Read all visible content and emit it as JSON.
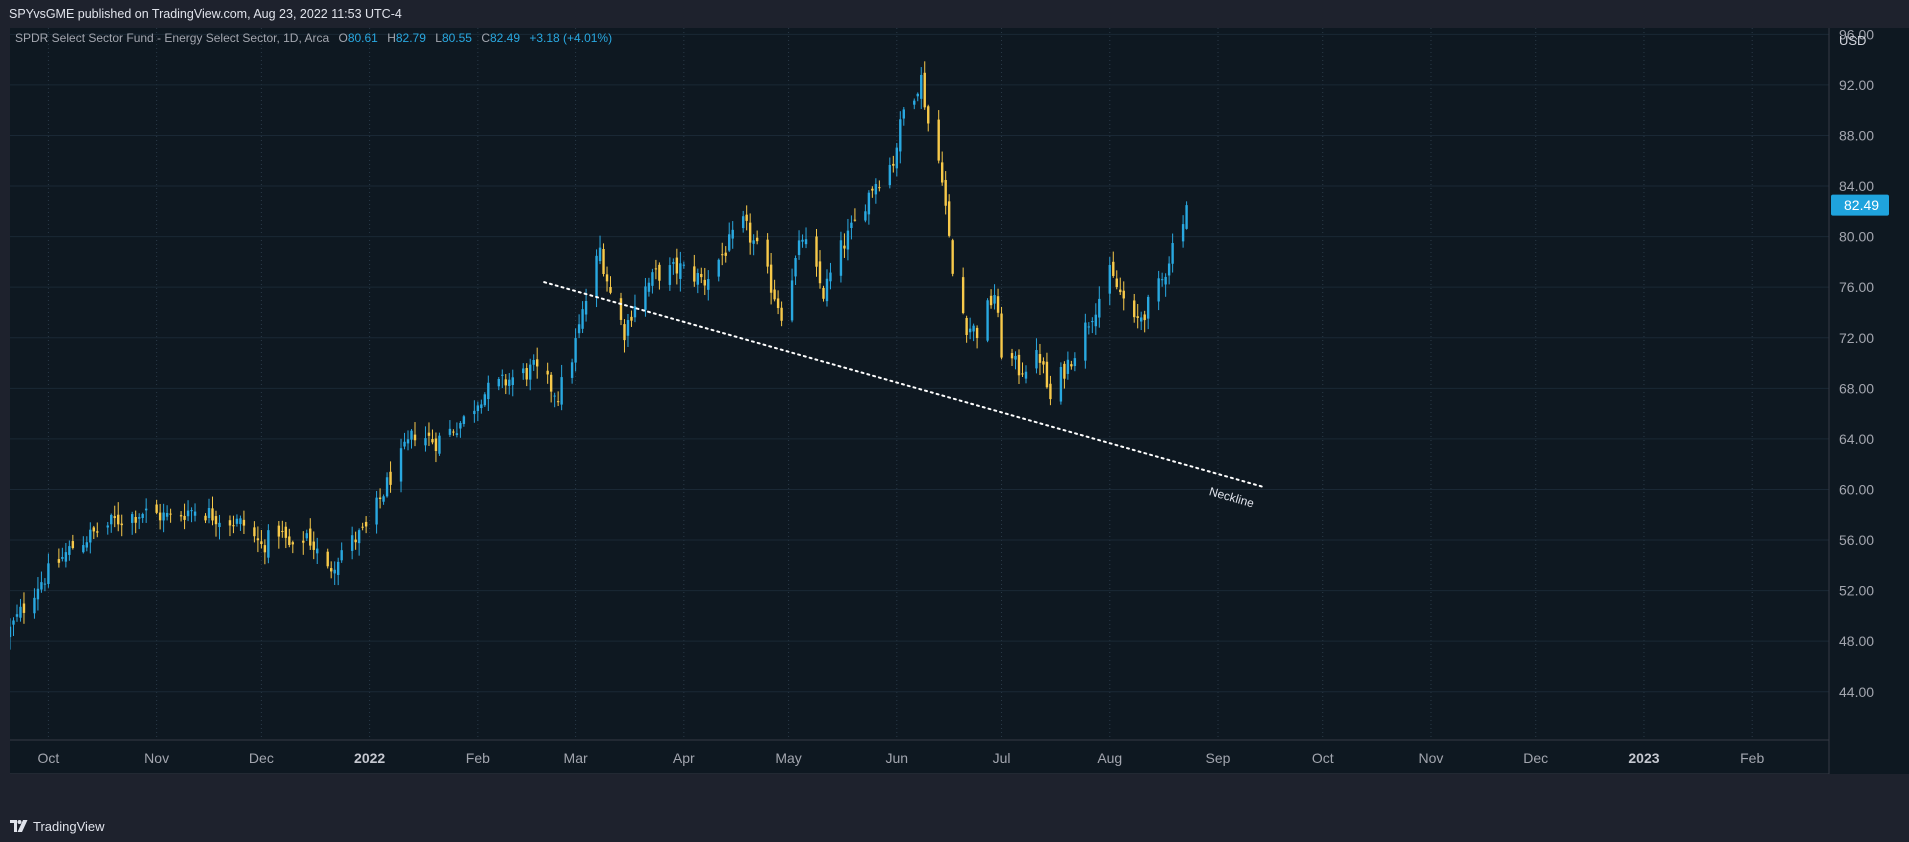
{
  "header": {
    "publisher_line": "SPYvsGME published on TradingView.com, Aug 23, 2022 11:53 UTC-4"
  },
  "footer": {
    "logo_text": "TradingView",
    "logo_icon": "tradingview-logo-icon"
  },
  "colors": {
    "background": "#0e1821",
    "frame": "#1e222d",
    "up_candle": "#29a8e0",
    "down_candle": "#f7c94a",
    "price_tag": "#1fa3dd",
    "neckline": "#ffffff",
    "legend_values": "#29a8e0"
  },
  "legend": {
    "symbol": "SPDR Select Sector Fund - Energy Select Sector, 1D, Arca",
    "o_label": "O",
    "o_value": "80.61",
    "h_label": "H",
    "h_value": "82.79",
    "l_label": "L",
    "l_value": "80.55",
    "c_label": "C",
    "c_value": "82.49",
    "change": "+3.18 (+4.01%)"
  },
  "chart_data": {
    "type": "candlestick",
    "title": "SPDR Select Sector Fund - Energy Select Sector, 1D, Arca",
    "currency": "USD",
    "last_price": 82.49,
    "ylim": [
      40.5,
      96.5
    ],
    "y_ticks": [
      "96.00",
      "92.00",
      "88.00",
      "84.00",
      "80.00",
      "76.00",
      "72.00",
      "68.00",
      "64.00",
      "60.00",
      "56.00",
      "52.00",
      "48.00",
      "44.00"
    ],
    "x_ticks": [
      {
        "label": "Oct",
        "date": "2021-10-01",
        "bold": false
      },
      {
        "label": "Nov",
        "date": "2021-11-01",
        "bold": false
      },
      {
        "label": "Dec",
        "date": "2021-12-01",
        "bold": false
      },
      {
        "label": "2022",
        "date": "2022-01-01",
        "bold": true
      },
      {
        "label": "Feb",
        "date": "2022-02-01",
        "bold": false
      },
      {
        "label": "Mar",
        "date": "2022-03-01",
        "bold": false
      },
      {
        "label": "Apr",
        "date": "2022-04-01",
        "bold": false
      },
      {
        "label": "May",
        "date": "2022-05-01",
        "bold": false
      },
      {
        "label": "Jun",
        "date": "2022-06-01",
        "bold": false
      },
      {
        "label": "Jul",
        "date": "2022-07-01",
        "bold": false
      },
      {
        "label": "Aug",
        "date": "2022-08-01",
        "bold": false
      },
      {
        "label": "Sep",
        "date": "2022-09-01",
        "bold": false
      },
      {
        "label": "Oct",
        "date": "2022-10-01",
        "bold": false
      },
      {
        "label": "Nov",
        "date": "2022-11-01",
        "bold": false
      },
      {
        "label": "Dec",
        "date": "2022-12-01",
        "bold": false
      },
      {
        "label": "2023",
        "date": "2023-01-01",
        "bold": true
      },
      {
        "label": "Feb",
        "date": "2023-02-01",
        "bold": false
      }
    ],
    "x_range": [
      "2021-09-20",
      "2023-02-23"
    ],
    "grid": true,
    "price_path": [
      [
        "2021-09-20",
        48.9
      ],
      [
        "2021-09-28",
        52.5
      ],
      [
        "2021-10-08",
        55.5
      ],
      [
        "2021-10-20",
        57.5
      ],
      [
        "2021-10-28",
        58.2
      ],
      [
        "2021-11-05",
        57.8
      ],
      [
        "2021-11-12",
        58.5
      ],
      [
        "2021-11-19",
        57.8
      ],
      [
        "2021-11-26",
        57.2
      ],
      [
        "2021-12-01",
        55.5
      ],
      [
        "2021-12-06",
        56.8
      ],
      [
        "2021-12-10",
        55.0
      ],
      [
        "2021-12-14",
        56.5
      ],
      [
        "2021-12-20",
        53.5
      ],
      [
        "2021-12-24",
        55.2
      ],
      [
        "2021-12-31",
        56.8
      ],
      [
        "2022-01-07",
        61.0
      ],
      [
        "2022-01-14",
        64.5
      ],
      [
        "2022-01-20",
        63.8
      ],
      [
        "2022-01-28",
        65.5
      ],
      [
        "2022-02-02",
        67.5
      ],
      [
        "2022-02-10",
        68.7
      ],
      [
        "2022-02-17",
        69.5
      ],
      [
        "2022-02-24",
        67.5
      ],
      [
        "2022-02-28",
        70.5
      ],
      [
        "2022-03-04",
        75.0
      ],
      [
        "2022-03-08",
        79.0
      ],
      [
        "2022-03-11",
        75.5
      ],
      [
        "2022-03-15",
        72.5
      ],
      [
        "2022-03-18",
        74.8
      ],
      [
        "2022-03-24",
        77.0
      ],
      [
        "2022-03-31",
        77.5
      ],
      [
        "2022-04-07",
        76.5
      ],
      [
        "2022-04-13",
        79.0
      ],
      [
        "2022-04-18",
        81.0
      ],
      [
        "2022-04-22",
        79.0
      ],
      [
        "2022-04-29",
        74.0
      ],
      [
        "2022-05-05",
        80.0
      ],
      [
        "2022-05-11",
        75.5
      ],
      [
        "2022-05-16",
        79.0
      ],
      [
        "2022-05-20",
        81.0
      ],
      [
        "2022-05-25",
        84.0
      ],
      [
        "2022-05-31",
        86.0
      ],
      [
        "2022-06-03",
        90.0
      ],
      [
        "2022-06-08",
        92.5
      ],
      [
        "2022-06-10",
        89.0
      ],
      [
        "2022-06-14",
        85.0
      ],
      [
        "2022-06-17",
        77.0
      ],
      [
        "2022-06-21",
        73.0
      ],
      [
        "2022-06-24",
        72.5
      ],
      [
        "2022-06-29",
        75.5
      ],
      [
        "2022-07-01",
        71.0
      ],
      [
        "2022-07-06",
        69.5
      ],
      [
        "2022-07-12",
        70.5
      ],
      [
        "2022-07-15",
        67.0
      ],
      [
        "2022-07-18",
        69.0
      ],
      [
        "2022-07-22",
        71.0
      ],
      [
        "2022-07-27",
        74.0
      ],
      [
        "2022-08-01",
        77.0
      ],
      [
        "2022-08-05",
        75.0
      ],
      [
        "2022-08-08",
        73.0
      ],
      [
        "2022-08-12",
        74.5
      ],
      [
        "2022-08-16",
        76.5
      ],
      [
        "2022-08-19",
        79.3
      ],
      [
        "2022-08-23",
        82.49
      ]
    ],
    "annotations": [
      {
        "type": "trendline",
        "style": "dotted",
        "label": "Neckline",
        "start": [
          "2022-02-20",
          76.4
        ],
        "end": [
          "2022-09-14",
          60.2
        ]
      }
    ]
  }
}
